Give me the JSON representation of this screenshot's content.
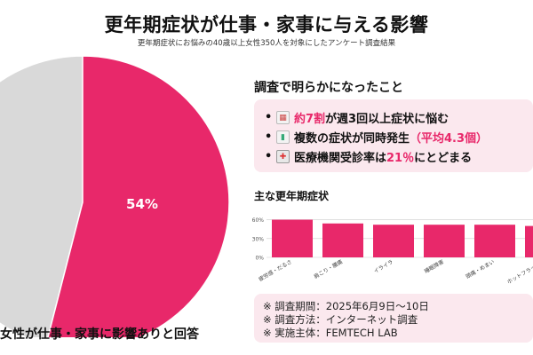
{
  "header": {
    "title": "更年期症状が仕事・家事に与える影響",
    "subtitle": "更年期症状にお悩みの40歳以上女性350人を対象にしたアンケート調査結果"
  },
  "pie": {
    "label": "54%",
    "caption": "女性が仕事・家事に影響ありと回答"
  },
  "findings": {
    "title": "調査で明らかになったこと",
    "items": [
      {
        "bullet": "•",
        "icon": "calendar-icon",
        "parts": [
          "約7割",
          "が週3回以上症状に悩む"
        ]
      },
      {
        "bullet": "•",
        "icon": "chart-icon",
        "parts": [
          "複数の症状が同時発生",
          "（平均4.3個）"
        ]
      },
      {
        "bullet": "•",
        "icon": "hospital-icon",
        "parts": [
          "医療機関受診率は",
          "21％",
          "にとどまる"
        ]
      }
    ]
  },
  "bar_chart": {
    "title": "主な更年期症状"
  },
  "notes": [
    "※ 調査期間：2025年6月9日〜10日",
    "※ 調査方法：インターネット調査",
    "※ 実施主体：FEMTECH LAB"
  ],
  "colors": {
    "accent": "#e8286a",
    "pie_rest": "#d9d9d9",
    "box_bg": "#fbe8ee",
    "grid": "#cccccc"
  },
  "chart_data": [
    {
      "type": "pie",
      "values": [
        54,
        46
      ],
      "labels": [
        "54%",
        ""
      ],
      "colors": [
        "#e8286a",
        "#d9d9d9"
      ]
    },
    {
      "type": "bar",
      "title": "主な更年期症状",
      "categories": [
        "疲労感・だるさ",
        "肩こり・腰痛",
        "イライラ",
        "睡眠障害",
        "頭痛・めまい",
        "ホットフラッシュ"
      ],
      "values": [
        60,
        54,
        52,
        52,
        52,
        50
      ],
      "yticks": [
        "0%",
        "30%",
        "60%"
      ],
      "ylim": [
        0,
        65
      ],
      "grid": true
    }
  ]
}
